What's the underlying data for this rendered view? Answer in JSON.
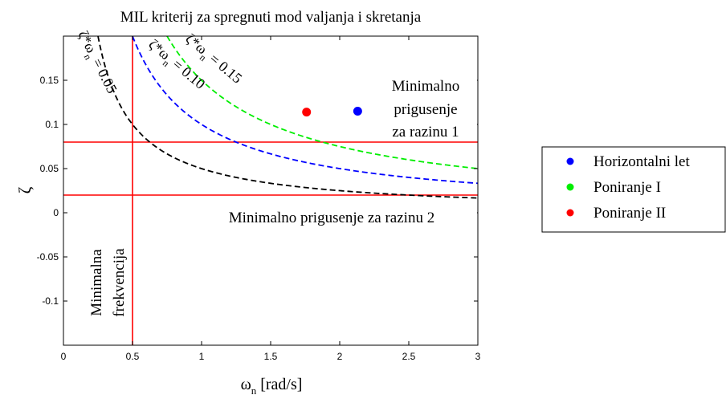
{
  "chart_data": {
    "type": "line",
    "title": "MIL kriterij za spregnuti mod valjanja i skretanja",
    "xlabel": {
      "main": "ω",
      "sub": "n",
      "unit": " [rad/s]"
    },
    "ylabel": "ζ",
    "xlim": [
      0,
      3
    ],
    "ylim": [
      -0.15,
      0.2
    ],
    "xticks": [
      0,
      0.5,
      1,
      1.5,
      2,
      2.5,
      3
    ],
    "xtick_labels": [
      "0",
      "0.5",
      "1",
      "1.5",
      "2",
      "2.5",
      "3"
    ],
    "yticks": [
      -0.1,
      -0.05,
      0,
      0.05,
      0.1,
      0.15
    ],
    "ytick_labels": [
      "-0.1",
      "-0.05",
      "0",
      "0.05",
      "0.1",
      "0.15"
    ],
    "grid": false,
    "curves": [
      {
        "label": "ζ*ωn = 0.05",
        "label_main": "ζ*ω",
        "label_sub": "n",
        "label_value": " = 0.05",
        "k": 0.05,
        "color": "#000000",
        "style": "dashed"
      },
      {
        "label": "ζ*ωn = 0.10",
        "label_main": "ζ*ω",
        "label_sub": "n",
        "label_value": " = 0.10",
        "k": 0.1,
        "color": "#0000ff",
        "style": "dashed"
      },
      {
        "label": "ζ*ωn = 0.15",
        "label_main": "ζ*ω",
        "label_sub": "n",
        "label_value": " = 0.15",
        "k": 0.15,
        "color": "#00ee00",
        "style": "dashed"
      }
    ],
    "hlines": [
      {
        "y": 0.08,
        "color": "#ff0000"
      },
      {
        "y": 0.02,
        "color": "#ff0000"
      }
    ],
    "vlines": [
      {
        "x": 0.5,
        "color": "#ff0000"
      }
    ],
    "points": [
      {
        "name": "Horizontalni let",
        "x": 2.13,
        "y": 0.115,
        "color": "#0000ff"
      },
      {
        "name": "Poniranje II",
        "x": 1.76,
        "y": 0.114,
        "color": "#ff0000"
      }
    ],
    "annotations": [
      {
        "id": "level1",
        "lines": [
          "Minimalno",
          "prigusenje",
          "za razinu 1"
        ]
      },
      {
        "id": "level2",
        "lines": [
          "Minimalno prigusenje za razinu 2"
        ]
      },
      {
        "id": "freq",
        "lines": [
          "Minimalna",
          "frekvencija"
        ]
      }
    ],
    "legend": {
      "placement": "outside-right",
      "entries": [
        {
          "name": "Horizontalni let",
          "color": "#0000ff"
        },
        {
          "name": "Poniranje I",
          "color": "#00ee00"
        },
        {
          "name": "Poniranje II",
          "color": "#ff0000"
        }
      ]
    }
  }
}
